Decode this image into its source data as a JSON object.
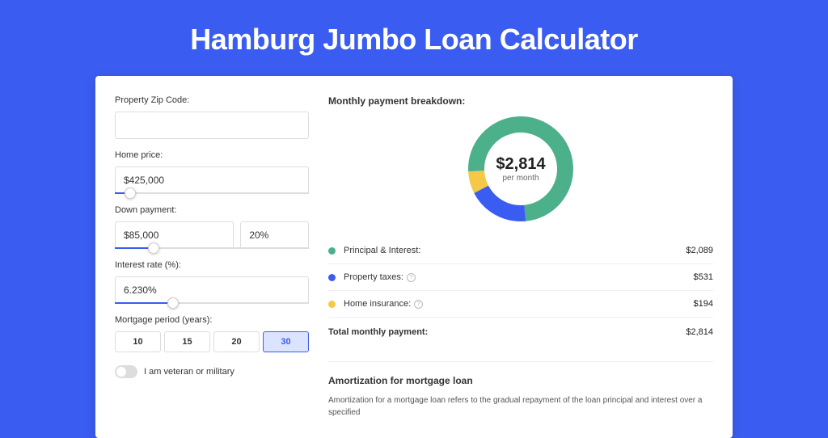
{
  "header": {
    "title": "Hamburg Jumbo Loan Calculator"
  },
  "form": {
    "zip": {
      "label": "Property Zip Code:",
      "value": ""
    },
    "price": {
      "label": "Home price:",
      "value": "$425,000",
      "slider_pct": 8
    },
    "down": {
      "label": "Down payment:",
      "amount": "$85,000",
      "pct": "20%",
      "slider_pct": 20
    },
    "rate": {
      "label": "Interest rate (%):",
      "value": "6.230%",
      "slider_pct": 30
    },
    "period": {
      "label": "Mortgage period (years):",
      "options": [
        "10",
        "15",
        "20",
        "30"
      ],
      "selected": "30"
    },
    "veteran": {
      "label": "I am veteran or military",
      "on": false
    }
  },
  "breakdown": {
    "title": "Monthly payment breakdown:",
    "center_amount": "$2,814",
    "center_sub": "per month",
    "donut": {
      "size": 130,
      "thickness": 20,
      "slices": [
        {
          "color": "#4cb08a",
          "pct": 74.2
        },
        {
          "color": "#3b5cf0",
          "pct": 18.9
        },
        {
          "color": "#f5c947",
          "pct": 6.9
        }
      ]
    },
    "items": [
      {
        "dot": "#4cb08a",
        "label": "Principal & Interest:",
        "value": "$2,089",
        "info": false
      },
      {
        "dot": "#3b5cf0",
        "label": "Property taxes:",
        "value": "$531",
        "info": true
      },
      {
        "dot": "#f5c947",
        "label": "Home insurance:",
        "value": "$194",
        "info": true
      }
    ],
    "total": {
      "label": "Total monthly payment:",
      "value": "$2,814"
    }
  },
  "amort": {
    "title": "Amortization for mortgage loan",
    "text": "Amortization for a mortgage loan refers to the gradual repayment of the loan principal and interest over a specified"
  }
}
